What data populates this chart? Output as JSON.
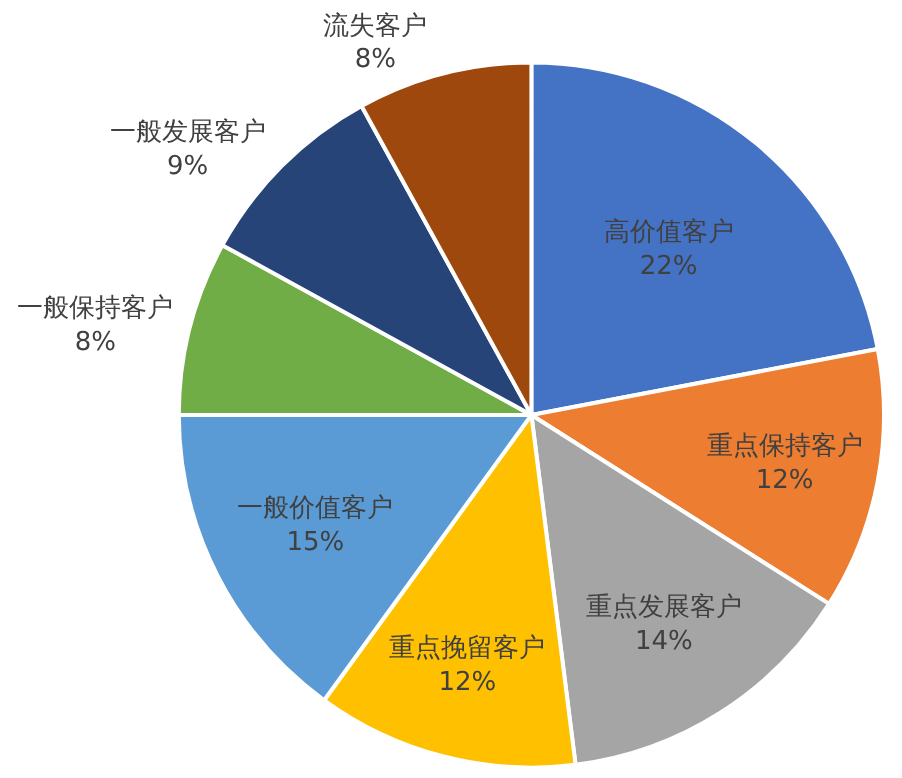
{
  "chart_data": {
    "type": "pie",
    "categories": [
      "高价值客户",
      "重点保持客户",
      "重点发展客户",
      "重点挽留客户",
      "一般价值客户",
      "一般保持客户",
      "一般发展客户",
      "流失客户"
    ],
    "values": [
      22,
      12,
      14,
      12,
      15,
      8,
      9,
      8
    ],
    "value_labels": [
      "22%",
      "12%",
      "14%",
      "12%",
      "15%",
      "8%",
      "9%",
      "8%"
    ],
    "colors": [
      "#4472c4",
      "#ed7d31",
      "#a5a5a5",
      "#ffc000",
      "#5b9bd5",
      "#70ad47",
      "#264478",
      "#9e480e"
    ],
    "legend": false
  }
}
